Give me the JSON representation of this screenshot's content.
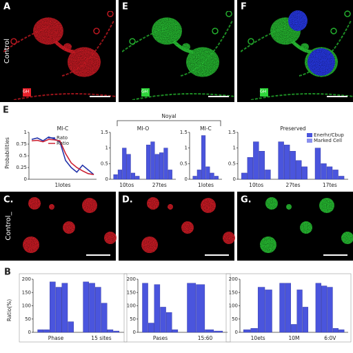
{
  "top_side_label": "Control",
  "top_panels": [
    {
      "label": "A",
      "channel": "GH"
    },
    {
      "label": "E",
      "channel": "GH"
    },
    {
      "label": "F",
      "channel": "GH"
    }
  ],
  "panel_e": {
    "label": "E",
    "y_label": "Probabilities",
    "group_label": "Noyal",
    "line_chart": {
      "type": "line",
      "title": "MI-C",
      "x_label": "1Iotes",
      "ylim": [
        0,
        1
      ],
      "yticks": [
        0,
        0.25,
        0.5,
        0.75,
        1
      ],
      "series": [
        {
          "name": "Rato",
          "color": "#2233aa",
          "values": [
            0.85,
            0.88,
            0.82,
            0.9,
            0.86,
            0.8,
            0.4,
            0.25,
            0.15,
            0.3,
            0.2,
            0.1
          ]
        },
        {
          "name": "Ratio",
          "color": "#cc2233",
          "values": [
            0.82,
            0.83,
            0.8,
            0.85,
            0.84,
            0.82,
            0.55,
            0.35,
            0.25,
            0.18,
            0.12,
            0.1
          ]
        }
      ]
    },
    "bar_charts": [
      {
        "type": "bar",
        "title": "MI-O",
        "ylim": [
          0,
          1.5
        ],
        "yticks": [
          0,
          0.5,
          1,
          1.5
        ],
        "groups": [
          {
            "label": "10tos",
            "values": [
              0.15,
              0.3,
              1.0,
              0.8,
              0.2,
              0.1
            ]
          },
          {
            "label": "27tes",
            "values": [
              1.1,
              1.2,
              0.8,
              0.85,
              1.0,
              0.3
            ]
          }
        ]
      },
      {
        "type": "bar",
        "title": "MI-C",
        "ylim": [
          0,
          1.5
        ],
        "yticks": [
          0,
          0.5,
          1,
          1.5
        ],
        "groups": [
          {
            "label": "1Iotes",
            "values": [
              0.1,
              0.3,
              1.4,
              0.4,
              0.2,
              0.1
            ]
          }
        ]
      },
      {
        "type": "bar",
        "title": "Preserved",
        "ylim": [
          0,
          1.5
        ],
        "yticks": [
          0,
          0.5,
          1,
          1.5
        ],
        "legend": [
          {
            "name": "Enerhr/Cbup",
            "color": "#4a55dd"
          },
          {
            "name": "Marked Cell",
            "color": "#8a90ee"
          }
        ],
        "groups": [
          {
            "label": "10tos",
            "values": [
              0.2,
              0.7,
              1.2,
              0.9,
              0.3
            ]
          },
          {
            "label": "27tes",
            "values": [
              1.2,
              1.1,
              0.9,
              0.6,
              0.4
            ]
          },
          {
            "label": "17tes",
            "values": [
              1.0,
              0.5,
              0.4,
              0.3,
              0.1
            ]
          }
        ]
      }
    ]
  },
  "middle_side_label": "Control_",
  "middle_panels": [
    {
      "label": "C."
    },
    {
      "label": "D."
    },
    {
      "label": "G."
    }
  ],
  "panel_b": {
    "label": "B",
    "y_label": "Ratio(%)",
    "charts": [
      {
        "type": "bar",
        "ylim": [
          0,
          200
        ],
        "yticks": [
          0,
          50,
          100,
          150,
          200
        ],
        "groups": [
          {
            "label": "Phase",
            "values": [
              10,
              10,
              190,
              170,
              185,
              40
            ]
          },
          {
            "label": "15 sites",
            "values": [
              190,
              185,
              170,
              110,
              10,
              5
            ]
          }
        ]
      },
      {
        "type": "bar",
        "ylim": [
          0,
          200
        ],
        "yticks": [
          0,
          50,
          100,
          150,
          200
        ],
        "groups": [
          {
            "label": "Pases",
            "values": [
              185,
              35,
              180,
              95,
              75,
              10
            ]
          },
          {
            "label": "15:60",
            "values": [
              185,
              180,
              10,
              5
            ]
          }
        ]
      },
      {
        "type": "bar",
        "ylim": [
          0,
          200
        ],
        "yticks": [
          0,
          50,
          100,
          150,
          200
        ],
        "groups": [
          {
            "label": "10ets",
            "values": [
              10,
              15,
              170,
              160
            ]
          },
          {
            "label": "10M",
            "values": [
              185,
              185,
              30,
              160,
              95
            ]
          },
          {
            "label": "6:0V",
            "values": [
              185,
              175,
              170,
              15,
              10
            ]
          }
        ]
      }
    ]
  }
}
